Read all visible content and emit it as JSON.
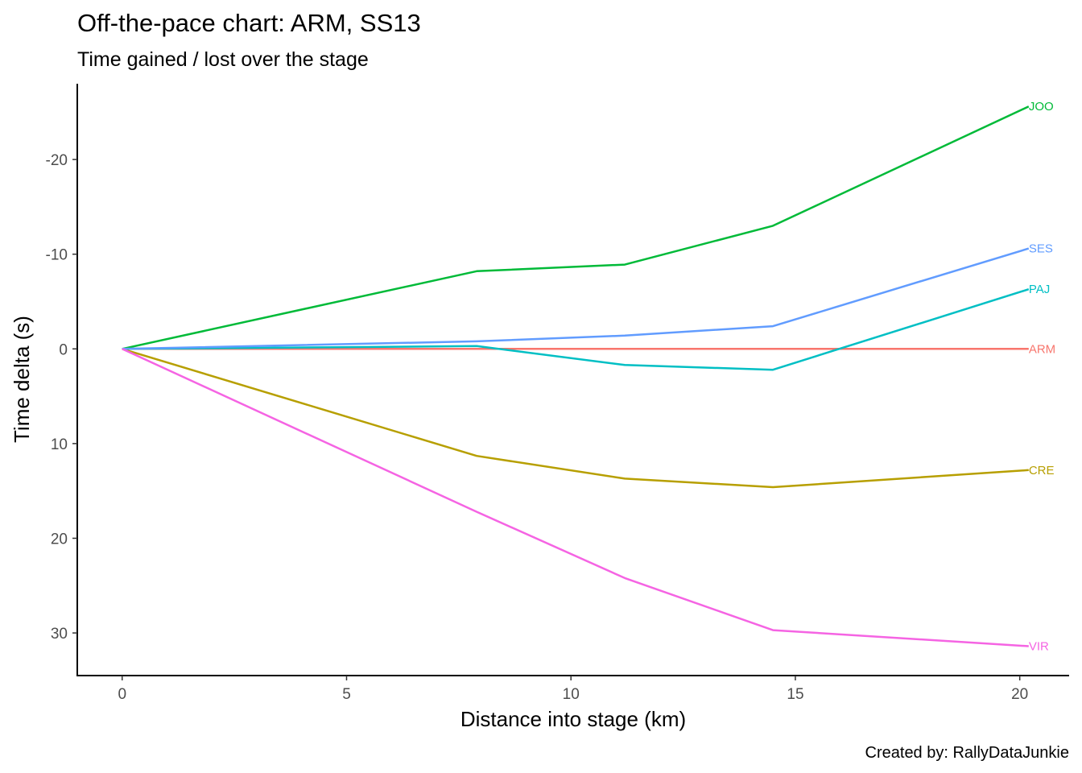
{
  "chart_data": {
    "type": "line",
    "title": "Off-the-pace chart: ARM, SS13",
    "subtitle": "Time gained / lost over the stage",
    "xlabel": "Distance into stage (km)",
    "ylabel": "Time delta (s)",
    "caption": "Created by: RallyDataJunkie",
    "xlim": [
      -1,
      21.1
    ],
    "ylim": [
      -28,
      34.5
    ],
    "y_reversed": true,
    "grid": false,
    "legend": "none (series labelled at line ends)",
    "x_ticks": [
      {
        "value": 0,
        "label": "0"
      },
      {
        "value": 5,
        "label": "5"
      },
      {
        "value": 10,
        "label": "10"
      },
      {
        "value": 15,
        "label": "15"
      },
      {
        "value": 20,
        "label": "20"
      }
    ],
    "y_ticks": [
      {
        "value": -20,
        "label": "-20"
      },
      {
        "value": -10,
        "label": "-10"
      },
      {
        "value": 0,
        "label": "0"
      },
      {
        "value": 10,
        "label": "10"
      },
      {
        "value": 20,
        "label": "20"
      },
      {
        "value": 30,
        "label": "30"
      }
    ],
    "series": [
      {
        "name": "ARM",
        "color": "#F8766D",
        "x": [
          0,
          7.9,
          11.2,
          14.5,
          20.2
        ],
        "y": [
          0,
          0,
          0,
          0,
          0
        ]
      },
      {
        "name": "CRE",
        "color": "#B79F00",
        "x": [
          0,
          7.9,
          11.2,
          14.5,
          20.2
        ],
        "y": [
          0,
          11.3,
          13.7,
          14.6,
          12.8
        ]
      },
      {
        "name": "JOO",
        "color": "#00BA38",
        "x": [
          0,
          7.9,
          11.2,
          14.5,
          20.2
        ],
        "y": [
          0,
          -8.2,
          -8.9,
          -13.0,
          -25.6
        ]
      },
      {
        "name": "PAJ",
        "color": "#00BFC4",
        "x": [
          0,
          7.9,
          11.2,
          14.5,
          20.2
        ],
        "y": [
          0,
          -0.3,
          1.7,
          2.2,
          -6.3
        ]
      },
      {
        "name": "SES",
        "color": "#619CFF",
        "x": [
          0,
          7.9,
          11.2,
          14.5,
          20.2
        ],
        "y": [
          0,
          -0.8,
          -1.4,
          -2.4,
          -10.6
        ]
      },
      {
        "name": "VIR",
        "color": "#F564E3",
        "x": [
          0,
          7.9,
          11.2,
          14.5,
          20.2
        ],
        "y": [
          0,
          17.2,
          24.2,
          29.7,
          31.4
        ]
      }
    ]
  }
}
